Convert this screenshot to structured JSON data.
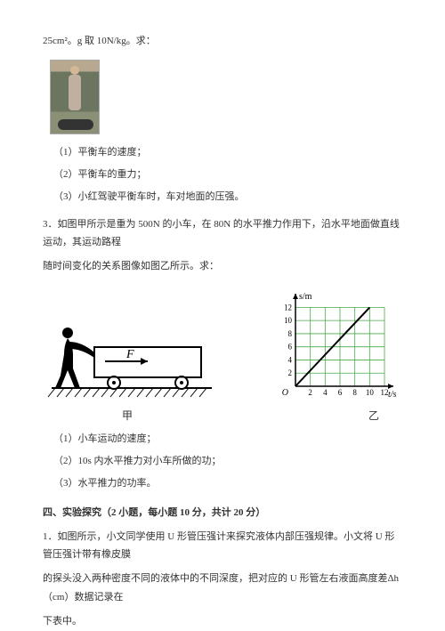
{
  "header_line": "25cm²。g 取 10N/kg。求：",
  "q2_sub1": "（1）平衡车的速度；",
  "q2_sub2": "（2）平衡车的重力；",
  "q2_sub3": "（3）小红驾驶平衡车时，车对地面的压强。",
  "q3_intro_a": "3．如图甲所示是重为 500N 的小车，在 80N 的水平推力作用下，沿水平地面做直线运动，其运动路程",
  "q3_intro_b": "随时间变化的关系图像如图乙所示。求：",
  "fig_jia_label": "甲",
  "fig_yi_label": "乙",
  "graph": {
    "y_axis_label": "s/m",
    "x_axis_label": "t/s",
    "x_ticks": [
      2,
      4,
      6,
      8,
      10,
      12
    ],
    "y_ticks": [
      2,
      4,
      6,
      8,
      10,
      12
    ],
    "xlim": [
      0,
      12
    ],
    "ylim": [
      0,
      13
    ],
    "line_start": [
      0,
      0
    ],
    "line_end": [
      10,
      12
    ],
    "grid_color": "#4aa84a",
    "axis_color": "#000000",
    "bg_color": "#ffffff"
  },
  "cart": {
    "F_label": "F"
  },
  "q3_sub1": "（1）小车运动的速度；",
  "q3_sub2": "（2）10s 内水平推力对小车所做的功；",
  "q3_sub3": "（3）水平推力的功率。",
  "section4_heading": "四、实验探究（2 小题，每小题 10 分，共计 20 分）",
  "q4_line1": "1．如图所示，小文同学使用 U 形管压强计来探究液体内部压强规律。小文将 U 形管压强计带有橡皮膜",
  "q4_line2": "的探头没入两种密度不同的液体中的不同深度，把对应的 U 形管左右液面高度差Δh（cm）数据记录在",
  "q4_line3": "下表中。"
}
